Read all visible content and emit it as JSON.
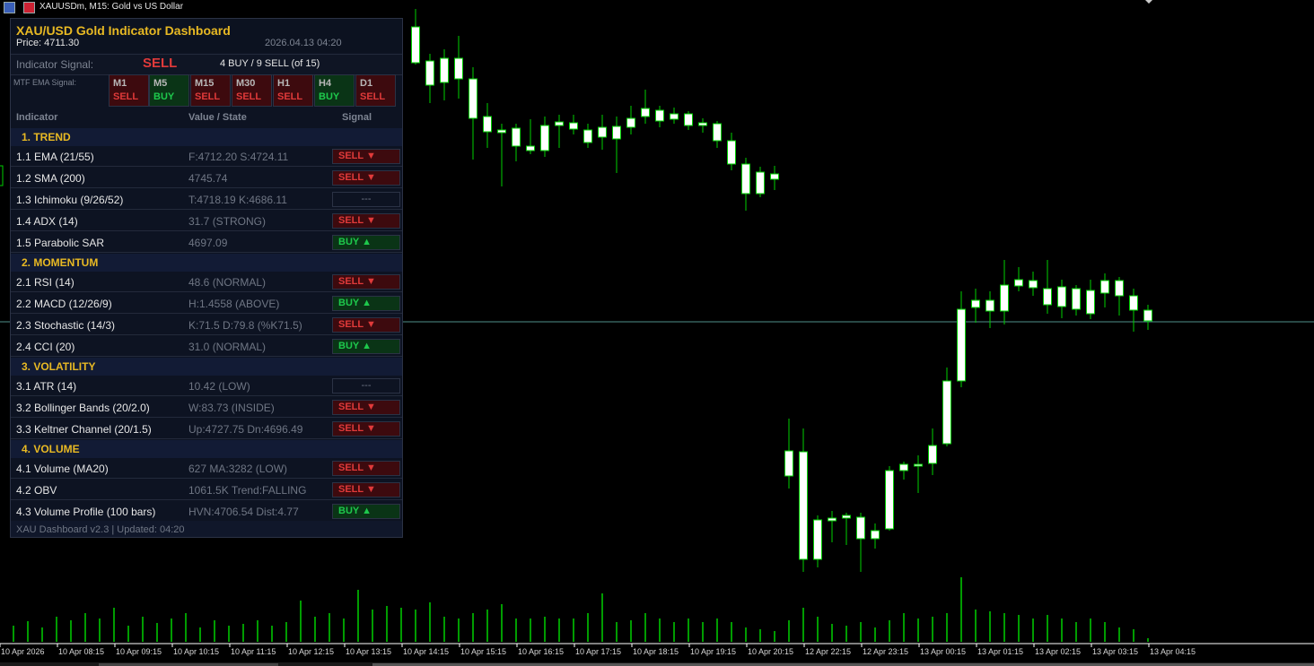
{
  "window": {
    "title": "XAUUSDm, M15:  Gold vs US Dollar"
  },
  "chart_data": {
    "type": "candlestick",
    "symbol": "XAUUSDm",
    "timeframe": "M15",
    "bull_color": "#00d000",
    "bear_color": "#ffffff",
    "price_line_color": "#4f8f8a",
    "x_tick_labels": [
      "10 Apr 2026",
      "10 Apr 08:15",
      "10 Apr 09:15",
      "10 Apr 10:15",
      "10 Apr 11:15",
      "10 Apr 12:15",
      "10 Apr 13:15",
      "10 Apr 14:15",
      "10 Apr 15:15",
      "10 Apr 16:15",
      "10 Apr 17:15",
      "10 Apr 18:15",
      "10 Apr 19:15",
      "10 Apr 20:15",
      "12 Apr 22:15",
      "12 Apr 23:15",
      "13 Apr 00:15",
      "13 Apr 01:15",
      "13 Apr 02:15",
      "13 Apr 03:15",
      "13 Apr 04:15"
    ]
  },
  "dashboard": {
    "title": "XAU/USD  Gold Indicator Dashboard",
    "price_label": "Price: 4711.30",
    "datetime": "2026.04.13 04:20",
    "signal_label": "Indicator Signal:",
    "signal_value": "SELL",
    "signal_count": "4 BUY / 9 SELL  (of 15)",
    "mtf_label": "MTF EMA Signal:",
    "mtf": [
      {
        "tf": "M1",
        "signal": "SELL",
        "state": "sell"
      },
      {
        "tf": "M5",
        "signal": "BUY",
        "state": "buy"
      },
      {
        "tf": "M15",
        "signal": "SELL",
        "state": "sell"
      },
      {
        "tf": "M30",
        "signal": "SELL",
        "state": "sell"
      },
      {
        "tf": "H1",
        "signal": "SELL",
        "state": "sell"
      },
      {
        "tf": "H4",
        "signal": "BUY",
        "state": "buy"
      },
      {
        "tf": "D1",
        "signal": "SELL",
        "state": "sell"
      }
    ],
    "columns": {
      "indicator": "Indicator",
      "value": "Value / State",
      "signal": "Signal"
    },
    "sections": [
      {
        "title": "1. TREND",
        "rows": [
          {
            "name": "1.1  EMA (21/55)",
            "value": "F:4712.20  S:4724.11",
            "signal": "SELL ▼",
            "state": "sell"
          },
          {
            "name": "1.2  SMA (200)",
            "value": "4745.74",
            "signal": "SELL ▼",
            "state": "sell"
          },
          {
            "name": "1.3  Ichimoku (9/26/52)",
            "value": "T:4718.19  K:4686.11",
            "signal": "---",
            "state": "neutral"
          },
          {
            "name": "1.4  ADX (14)",
            "value": "31.7 (STRONG)",
            "signal": "SELL ▼",
            "state": "sell"
          },
          {
            "name": "1.5  Parabolic SAR",
            "value": "4697.09",
            "signal": "BUY ▲",
            "state": "buy"
          }
        ]
      },
      {
        "title": "2. MOMENTUM",
        "rows": [
          {
            "name": "2.1  RSI (14)",
            "value": "48.6 (NORMAL)",
            "signal": "SELL ▼",
            "state": "sell"
          },
          {
            "name": "2.2  MACD (12/26/9)",
            "value": "H:1.4558 (ABOVE)",
            "signal": "BUY ▲",
            "state": "buy"
          },
          {
            "name": "2.3  Stochastic (14/3)",
            "value": "K:71.5  D:79.8 (%K71.5)",
            "signal": "SELL ▼",
            "state": "sell"
          },
          {
            "name": "2.4  CCI (20)",
            "value": "31.0 (NORMAL)",
            "signal": "BUY ▲",
            "state": "buy"
          }
        ]
      },
      {
        "title": "3. VOLATILITY",
        "rows": [
          {
            "name": "3.1  ATR (14)",
            "value": "10.42 (LOW)",
            "signal": "---",
            "state": "neutral"
          },
          {
            "name": "3.2  Bollinger Bands (20/2.0)",
            "value": "W:83.73 (INSIDE)",
            "signal": "SELL ▼",
            "state": "sell"
          },
          {
            "name": "3.3  Keltner Channel (20/1.5)",
            "value": "Up:4727.75  Dn:4696.49",
            "signal": "SELL ▼",
            "state": "sell"
          }
        ]
      },
      {
        "title": "4. VOLUME",
        "rows": [
          {
            "name": "4.1  Volume (MA20)",
            "value": "627  MA:3282 (LOW)",
            "signal": "SELL ▼",
            "state": "sell"
          },
          {
            "name": "4.2  OBV",
            "value": "1061.5K  Trend:FALLING",
            "signal": "SELL ▼",
            "state": "sell"
          },
          {
            "name": "4.3  Volume Profile (100 bars)",
            "value": "HVN:4706.54  Dist:4.77",
            "signal": "BUY ▲",
            "state": "buy"
          }
        ]
      }
    ],
    "footer": "XAU Dashboard v2.3  |  Updated: 04:20"
  }
}
